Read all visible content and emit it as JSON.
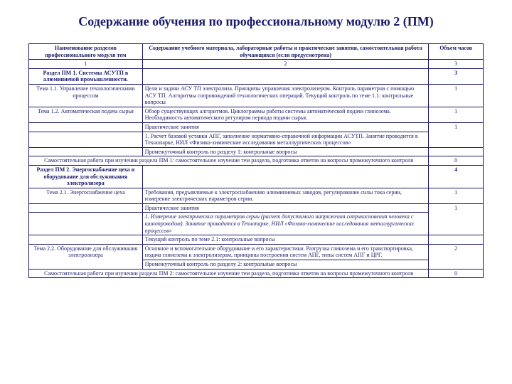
{
  "title": "Содержание обучения по профессиональному модулю 2 (ПМ)",
  "colors": {
    "text": "#1a1a6a",
    "border": "#1a1a6a",
    "bg": "#ffffff"
  },
  "font": {
    "family": "Times New Roman",
    "title_size": 18,
    "body_size": 8
  },
  "headers": {
    "c1": "Наименование разделов профессионального модуля тем",
    "c2": "Содержание учебного материала, лабораторные работы и практические занятия, самостоятельная работа обучающихся (если предусмотрена)",
    "c3": "Объем часов"
  },
  "nums": {
    "c1": "1",
    "c2": "2",
    "c3": "3"
  },
  "r1": {
    "c1": "Раздел ПМ 1. Системы АСУТП в алюминиевой промышленности.",
    "c3": "3"
  },
  "r2": {
    "c1": "Тема 1.1. Управление технологическими процессом",
    "c2": "Цели и задачи АСУ ТП электролиза. Принципы управления электролизером. Контроль параметров с помощью АСУ ТП. Алгоритмы сопровождений технологических операций. Текущий контроль по теме 1.1: контрольные вопросы",
    "c3": "1"
  },
  "r3": {
    "c1": "Тема 1.2. Автоматическая подача сырья",
    "c2": "Обзор существующих алгоритмов. Циклограммы работы системы автоматической подачи глинозема. Необходимость автоматического регулиром периода подачи сырья.",
    "c3": "1"
  },
  "r4": {
    "c2a": "Практические занятия",
    "c2b": "1.    Расчет базовой уставки АПГ, заполнение нормативно-справочной информации АСУТП.   Занятие проводится  в  Технопарке, НИЛ «Физико-химические исследования металлургических процессов»",
    "c2c": "Промежуточный контроль по разделу 1: контрольные вопросы",
    "c3": "1"
  },
  "r5": {
    "c12": "Самостоятельная работа при изучении раздела ПМ 1: самостоятельное изучение тем раздела, подготовка ответов на вопросы промежуточного контроля",
    "c3": "0"
  },
  "r6": {
    "c1": "Раздел ПМ 2. Энергоснабжение цеха и оборудование для обслуживания электролизера",
    "c3": "4"
  },
  "r7": {
    "c1": "Тема 2.1. Энергоснабжение цеха",
    "c2": "Требования, предъявляемые к электроснабжению алюминиевых заводов, регулирование силы тока серии, измерение электрических параметров серии.",
    "c3": "1"
  },
  "r8": {
    "c2a": "Практические занятия",
    "c2b": "1.   Измерение электрических  параметров  серии (расчет допустимого напряжения соприкосновения человека с шинопроводом). Занятие проводится в Технопарке, НИЛ «Физико-химические исследования металлургических процессов»",
    "c2c": "Текущий контроль по теме 2.1: контрольные вопросы",
    "c3": "1"
  },
  "r9": {
    "c1": "Тема 2.2.    Оборудование для обслуживания электролизера",
    "c2": "Основное и вспомогательное оборудование и его характеристики.  Разгрузка глинозема и его транспортировка, подача глинозема к электролизерам, принципы построения систем АПГ, типы систем АПГ и ЦРГ.",
    "c2b": "Промежуточный контроль по разделу 2: контрольные вопросы",
    "c3": "2"
  },
  "r10": {
    "c12": "Самостоятельная работа при изучении раздела ПМ 2: самостоятельное изучение тем раздела, подготовка ответов на вопросы промежуточного контроля",
    "c3": "0"
  }
}
